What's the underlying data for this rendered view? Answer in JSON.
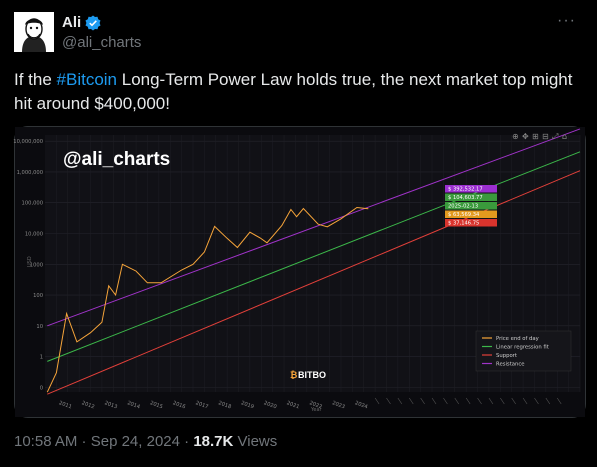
{
  "author": {
    "name": "Ali",
    "handle": "@ali_charts",
    "verified_color": "#1d9bf0"
  },
  "tweet": {
    "text_prefix": "If the ",
    "hashtag": "#Bitcoin",
    "text_suffix": " Long-Term Power Law holds true, the next market top might hit around $400,000!"
  },
  "media": {
    "watermark": "@ali_charts",
    "brand": "BITBO",
    "y_axis_label": "USD",
    "x_axis_label": "Year"
  },
  "footer": {
    "time": "10:58 AM",
    "separator1": " · ",
    "date": "Sep 24, 2024",
    "separator2": " · ",
    "views_count": "18.7K",
    "views_label": " Views"
  },
  "chart_data": {
    "type": "line",
    "yscale": "log",
    "y_ticks": [
      "10,000,000",
      "1,000,000",
      "100,000",
      "10,000",
      "1000",
      "100",
      "10",
      "1",
      "0"
    ],
    "x_ticks": [
      "2011",
      "2012",
      "2013",
      "2014",
      "2015",
      "2016",
      "2017",
      "2018",
      "2019",
      "2020",
      "2021",
      "2022",
      "2023",
      "2024"
    ],
    "legend": [
      {
        "name": "Price end of day",
        "color": "#f7a53a"
      },
      {
        "name": "Linear regression fit",
        "color": "#3cb84a"
      },
      {
        "name": "Support",
        "color": "#e2403a"
      },
      {
        "name": "Resistance",
        "color": "#a033c9"
      }
    ],
    "price_tags": [
      {
        "label": "$ 392,532.17",
        "color": "#9b2fd0"
      },
      {
        "label": "$ 104,603.77",
        "color": "#3a9a3c"
      },
      {
        "label": "2025-02-13",
        "color": "#3a9a3c"
      },
      {
        "label": "$ 63,569.34",
        "color": "#e39a1e"
      },
      {
        "label": "$ 37,146.75",
        "color": "#d9342d"
      }
    ],
    "series": [
      {
        "name": "Price end of day",
        "x": [
          2010.6,
          2011.0,
          2011.45,
          2011.9,
          2012.5,
          2013.0,
          2013.3,
          2013.6,
          2013.9,
          2014.5,
          2015.0,
          2015.6,
          2016.5,
          2017.0,
          2017.5,
          2017.95,
          2018.5,
          2018.95,
          2019.5,
          2019.95,
          2020.25,
          2020.9,
          2021.3,
          2021.55,
          2021.85,
          2022.5,
          2022.9,
          2023.5,
          2024.2,
          2024.7
        ],
        "values": [
          0.07,
          0.3,
          25,
          3,
          6,
          13,
          200,
          100,
          1000,
          600,
          250,
          250,
          650,
          1000,
          2500,
          17000,
          7000,
          3500,
          11000,
          7200,
          5000,
          18000,
          60000,
          35000,
          65000,
          20000,
          16500,
          30000,
          70000,
          63569
        ]
      }
    ]
  }
}
